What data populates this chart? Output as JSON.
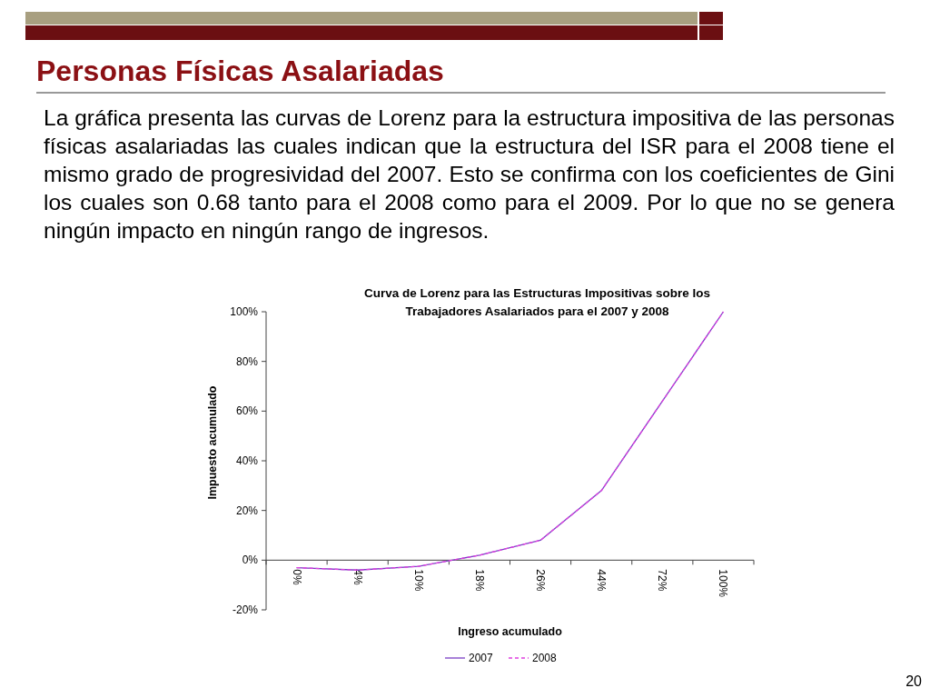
{
  "chart_data": {
    "type": "line",
    "title": "Curva de Lorenz para las Estructuras Impositivas sobre los Trabajadores Asalariados para el 2007 y 2008",
    "xlabel": "Ingreso acumulado",
    "ylabel": "Impuesto acumulado",
    "categories": [
      "0%",
      "4%",
      "10%",
      "18%",
      "26%",
      "44%",
      "72%",
      "100%"
    ],
    "series": [
      {
        "name": "2007",
        "color": "#7b3fc4",
        "line_style": "solid",
        "values": [
          -3,
          -4,
          -2.5,
          2,
          8,
          28,
          64,
          100
        ]
      },
      {
        "name": "2008",
        "color": "#e040e0",
        "line_style": "dashed",
        "values": [
          -3,
          -4,
          -2.5,
          2,
          8,
          28,
          64,
          100
        ]
      }
    ],
    "ylim": [
      -20,
      100
    ],
    "yticks": [
      {
        "value": -20,
        "label": "-20%"
      },
      {
        "value": 0,
        "label": "0%"
      },
      {
        "value": 20,
        "label": "20%"
      },
      {
        "value": 40,
        "label": "40%"
      },
      {
        "value": 60,
        "label": "60%"
      },
      {
        "value": 80,
        "label": "80%"
      },
      {
        "value": 100,
        "label": "100%"
      }
    ],
    "grid": false,
    "legend": "bottom",
    "annotations": [
      "Personas Físicas Asalariadas",
      "La gráfica presenta las curvas de Lorenz para la estructura impositiva de las personas físicas asalariadas las cuales indican que la estructura del ISR para el 2008 tiene el mismo grado de progresividad del 2007. Esto se confirma con los coeficientes de Gini los cuales son 0.68 tanto para el 2008 como para el 2009. Por lo que no se genera ningún impacto en ningún rango de ingresos.",
      "20"
    ]
  }
}
